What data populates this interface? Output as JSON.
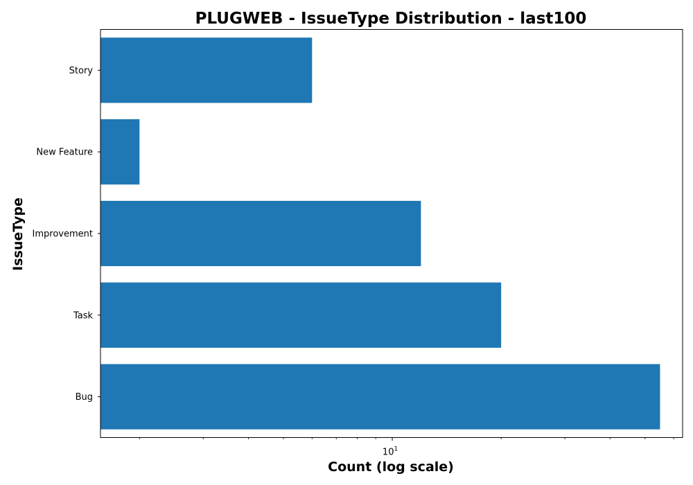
{
  "chart_data": {
    "type": "bar",
    "orientation": "horizontal",
    "title": "PLUGWEB - IssueType Distribution - last100",
    "xlabel": "Count (log scale)",
    "ylabel": "IssueType",
    "x_scale": "log",
    "xlim": [
      1.56,
      63.5
    ],
    "categories": [
      "Bug",
      "Task",
      "Improvement",
      "New Feature",
      "Story"
    ],
    "values": [
      55,
      20,
      12,
      2,
      6
    ],
    "x_major_ticks": [
      {
        "value": 10,
        "base": "10",
        "exponent": "1"
      }
    ],
    "x_minor_ticks": [
      2,
      3,
      4,
      5,
      6,
      7,
      8,
      9,
      20,
      30,
      40,
      50,
      60
    ],
    "bar_color": "#1f77b4",
    "grid": false,
    "legend": "none"
  }
}
